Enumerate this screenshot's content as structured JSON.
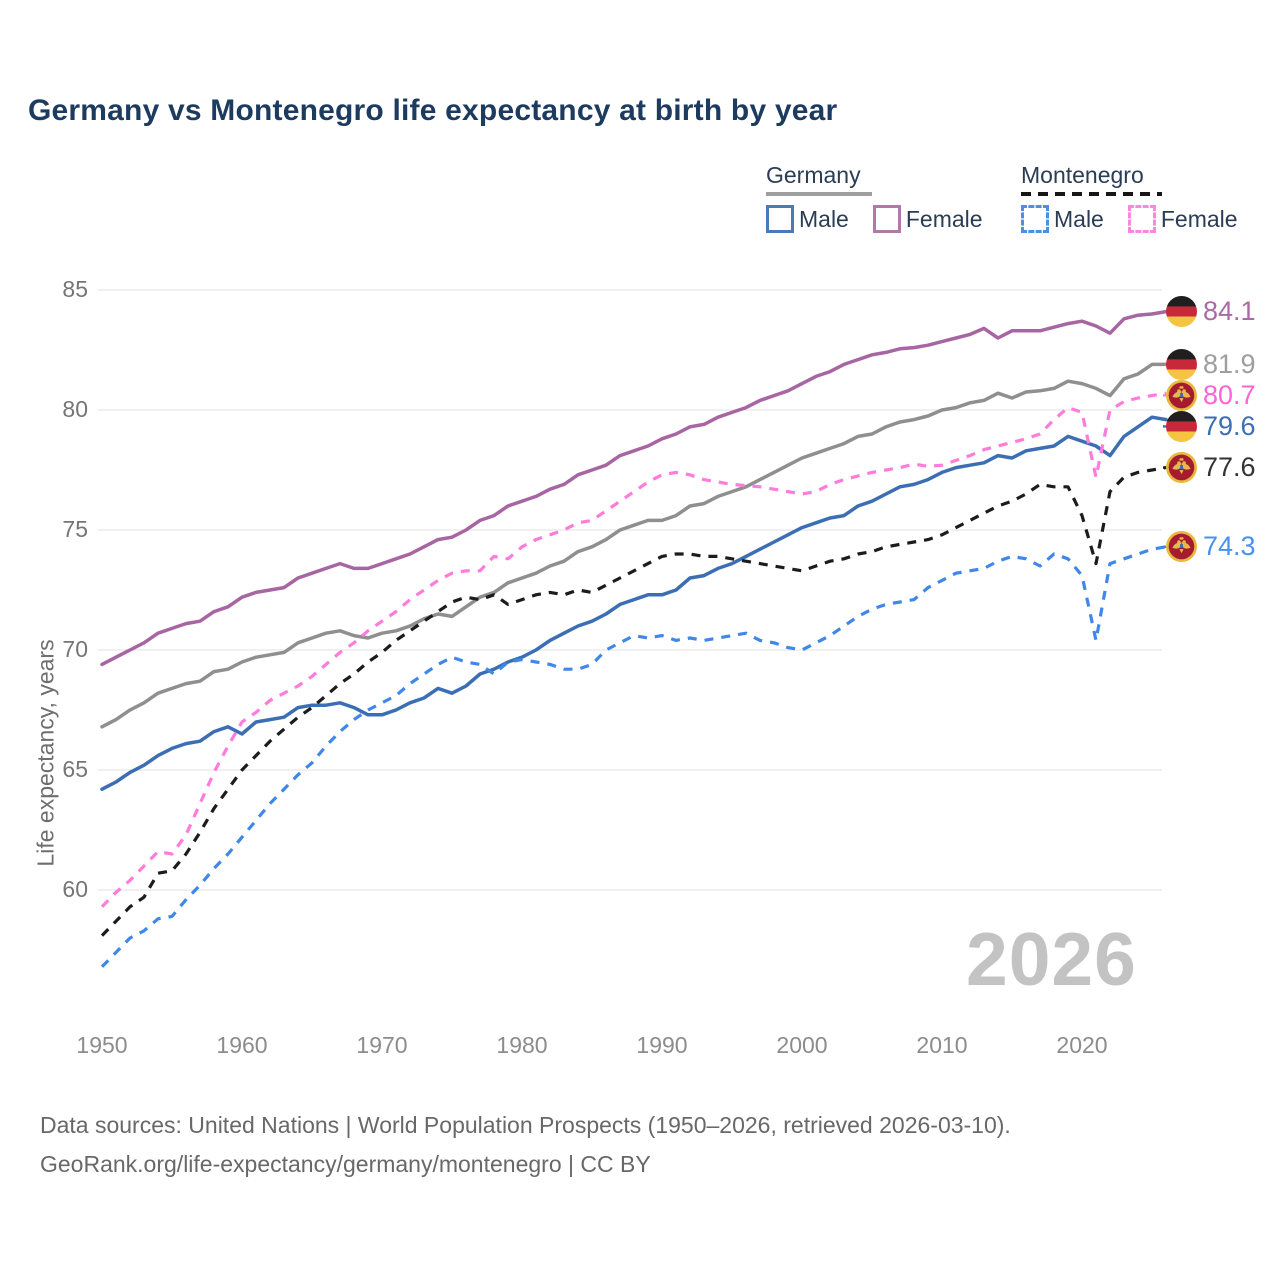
{
  "title": "Germany vs Montenegro life expectancy at birth by year",
  "legend": {
    "groups": [
      {
        "name": "Germany",
        "style": "solid",
        "underline_color": "#9e9e9e",
        "items": [
          {
            "label": "Male",
            "color": "#4a7ab8"
          },
          {
            "label": "Female",
            "color": "#b07aa8"
          }
        ]
      },
      {
        "name": "Montenegro",
        "style": "dashed",
        "underline_color": "#161616",
        "items": [
          {
            "label": "Male",
            "color": "#4a90ea"
          },
          {
            "label": "Female",
            "color": "#ff85e0"
          }
        ]
      }
    ]
  },
  "y_axis": {
    "label": "Life expectancy, years",
    "ticks": [
      85,
      80,
      75,
      70,
      65,
      60
    ]
  },
  "x_axis": {
    "ticks": [
      1950,
      1960,
      1970,
      1980,
      1990,
      2000,
      2010,
      2020
    ]
  },
  "watermark": "2026",
  "footer": {
    "line1": "Data sources: United Nations | World Population Prospects (1950–2026, retrieved 2026-03-10).",
    "line2": "GeoRank.org/life-expectancy/germany/montenegro | CC BY"
  },
  "colors": {
    "grid": "#ebebeb",
    "title": "#1d3b5e",
    "axis_text": "#757575"
  },
  "chart_data": {
    "type": "line",
    "title": "Germany vs Montenegro life expectancy at birth by year",
    "xlabel": "",
    "ylabel": "Life expectancy, years",
    "x_start": 1950,
    "x_end": 2026,
    "ylim": [
      56,
      86
    ],
    "grid": true,
    "legend_position": "top-right",
    "series": [
      {
        "name": "Germany female",
        "flag": "de",
        "color": "#a765a2",
        "label_color": "#aa6aa6",
        "dash": false,
        "end_label": "84.1",
        "values": [
          69.4,
          69.7,
          70.0,
          70.3,
          70.7,
          70.9,
          71.1,
          71.2,
          71.6,
          71.8,
          72.2,
          72.4,
          72.5,
          72.6,
          73.0,
          73.2,
          73.4,
          73.6,
          73.4,
          73.4,
          73.6,
          73.8,
          74.0,
          74.3,
          74.6,
          74.7,
          75.0,
          75.4,
          75.6,
          76.0,
          76.2,
          76.4,
          76.7,
          76.9,
          77.3,
          77.5,
          77.7,
          78.1,
          78.3,
          78.5,
          78.8,
          79.0,
          79.3,
          79.4,
          79.7,
          79.9,
          80.1,
          80.4,
          80.6,
          80.8,
          81.1,
          81.4,
          81.6,
          81.9,
          82.1,
          82.3,
          82.4,
          82.55,
          82.6,
          82.7,
          82.85,
          83.0,
          83.15,
          83.4,
          83.0,
          83.3,
          83.3,
          83.3,
          83.45,
          83.6,
          83.7,
          83.5,
          83.2,
          83.8,
          83.95,
          84.0,
          84.1
        ]
      },
      {
        "name": "Germany both sexes",
        "flag": "de",
        "color": "#8f8f8f",
        "label_color": "#9e9e9e",
        "dash": false,
        "end_label": "81.9",
        "values": [
          66.8,
          67.1,
          67.5,
          67.8,
          68.2,
          68.4,
          68.6,
          68.7,
          69.1,
          69.2,
          69.5,
          69.7,
          69.8,
          69.9,
          70.3,
          70.5,
          70.7,
          70.8,
          70.6,
          70.5,
          70.7,
          70.8,
          71.0,
          71.3,
          71.5,
          71.4,
          71.8,
          72.2,
          72.4,
          72.8,
          73.0,
          73.2,
          73.5,
          73.7,
          74.1,
          74.3,
          74.6,
          75.0,
          75.2,
          75.4,
          75.4,
          75.6,
          76.0,
          76.1,
          76.4,
          76.6,
          76.8,
          77.1,
          77.4,
          77.7,
          78.0,
          78.2,
          78.4,
          78.6,
          78.9,
          79.0,
          79.3,
          79.5,
          79.6,
          79.75,
          80.0,
          80.1,
          80.3,
          80.4,
          80.7,
          80.5,
          80.75,
          80.8,
          80.9,
          81.2,
          81.1,
          80.9,
          80.6,
          81.3,
          81.5,
          81.9,
          81.9
        ]
      },
      {
        "name": "Montenegro female",
        "flag": "me",
        "color": "#ff7bdc",
        "label_color": "#ff63d8",
        "dash": true,
        "end_label": "80.7",
        "values": [
          59.3,
          59.9,
          60.4,
          61.0,
          61.6,
          61.5,
          62.3,
          63.6,
          64.9,
          66.0,
          67.0,
          67.4,
          67.9,
          68.2,
          68.5,
          68.9,
          69.4,
          69.9,
          70.3,
          70.8,
          71.2,
          71.6,
          72.1,
          72.5,
          72.9,
          73.2,
          73.3,
          73.3,
          73.9,
          73.8,
          74.3,
          74.6,
          74.8,
          75.0,
          75.3,
          75.4,
          75.8,
          76.2,
          76.6,
          77.0,
          77.3,
          77.4,
          77.3,
          77.1,
          77.0,
          76.9,
          76.85,
          76.8,
          76.7,
          76.6,
          76.5,
          76.6,
          76.9,
          77.1,
          77.25,
          77.4,
          77.5,
          77.6,
          77.75,
          77.65,
          77.7,
          77.9,
          78.1,
          78.35,
          78.5,
          78.65,
          78.8,
          79.0,
          79.6,
          80.1,
          79.9,
          77.2,
          80.0,
          80.35,
          80.5,
          80.6,
          80.7
        ]
      },
      {
        "name": "Germany male",
        "flag": "de",
        "color": "#3c6eb4",
        "label_color": "#3c6eb4",
        "dash": false,
        "end_label": "79.6",
        "values": [
          64.2,
          64.5,
          64.9,
          65.2,
          65.6,
          65.9,
          66.1,
          66.2,
          66.6,
          66.8,
          66.5,
          67.0,
          67.1,
          67.2,
          67.6,
          67.7,
          67.7,
          67.8,
          67.6,
          67.3,
          67.3,
          67.5,
          67.8,
          68.0,
          68.4,
          68.2,
          68.5,
          69.0,
          69.2,
          69.5,
          69.7,
          70.0,
          70.4,
          70.7,
          71.0,
          71.2,
          71.5,
          71.9,
          72.1,
          72.3,
          72.3,
          72.5,
          73.0,
          73.1,
          73.4,
          73.6,
          73.9,
          74.2,
          74.5,
          74.8,
          75.1,
          75.3,
          75.5,
          75.6,
          76.0,
          76.2,
          76.5,
          76.8,
          76.9,
          77.1,
          77.4,
          77.6,
          77.7,
          77.8,
          78.1,
          78.0,
          78.3,
          78.4,
          78.5,
          78.9,
          78.7,
          78.5,
          78.1,
          78.9,
          79.3,
          79.7,
          79.6
        ]
      },
      {
        "name": "Montenegro both sexes",
        "flag": "me",
        "color": "#1c1c1c",
        "label_color": "#333333",
        "dash": true,
        "end_label": "77.6",
        "values": [
          58.1,
          58.7,
          59.3,
          59.7,
          60.7,
          60.8,
          61.5,
          62.4,
          63.4,
          64.2,
          65.0,
          65.6,
          66.2,
          66.7,
          67.2,
          67.6,
          68.1,
          68.6,
          69.0,
          69.5,
          69.9,
          70.4,
          70.8,
          71.2,
          71.6,
          72.0,
          72.2,
          72.1,
          72.3,
          71.9,
          72.1,
          72.3,
          72.4,
          72.3,
          72.5,
          72.4,
          72.7,
          73.0,
          73.3,
          73.6,
          73.9,
          74.0,
          74.0,
          73.9,
          73.9,
          73.8,
          73.7,
          73.6,
          73.5,
          73.4,
          73.3,
          73.5,
          73.7,
          73.8,
          74.0,
          74.1,
          74.3,
          74.4,
          74.5,
          74.6,
          74.8,
          75.1,
          75.4,
          75.7,
          76.0,
          76.2,
          76.5,
          76.9,
          76.8,
          76.8,
          75.6,
          73.6,
          76.6,
          77.2,
          77.4,
          77.5,
          77.6
        ]
      },
      {
        "name": "Montenegro male",
        "flag": "me",
        "color": "#3f88ea",
        "label_color": "#4a90f0",
        "dash": true,
        "end_label": "74.3",
        "values": [
          56.8,
          57.4,
          58.0,
          58.3,
          58.8,
          58.9,
          59.6,
          60.2,
          60.9,
          61.5,
          62.2,
          62.9,
          63.6,
          64.2,
          64.8,
          65.3,
          66.0,
          66.6,
          67.1,
          67.5,
          67.8,
          68.1,
          68.6,
          69.0,
          69.4,
          69.7,
          69.5,
          69.4,
          69.0,
          69.5,
          69.6,
          69.5,
          69.4,
          69.2,
          69.2,
          69.4,
          70.0,
          70.3,
          70.6,
          70.5,
          70.6,
          70.4,
          70.5,
          70.4,
          70.5,
          70.6,
          70.7,
          70.4,
          70.3,
          70.1,
          70.0,
          70.3,
          70.6,
          71.0,
          71.4,
          71.7,
          71.9,
          72.0,
          72.1,
          72.6,
          72.9,
          73.2,
          73.3,
          73.4,
          73.7,
          73.9,
          73.8,
          73.5,
          74.0,
          73.8,
          73.1,
          70.4,
          73.6,
          73.8,
          74.0,
          74.2,
          74.3
        ]
      }
    ]
  }
}
